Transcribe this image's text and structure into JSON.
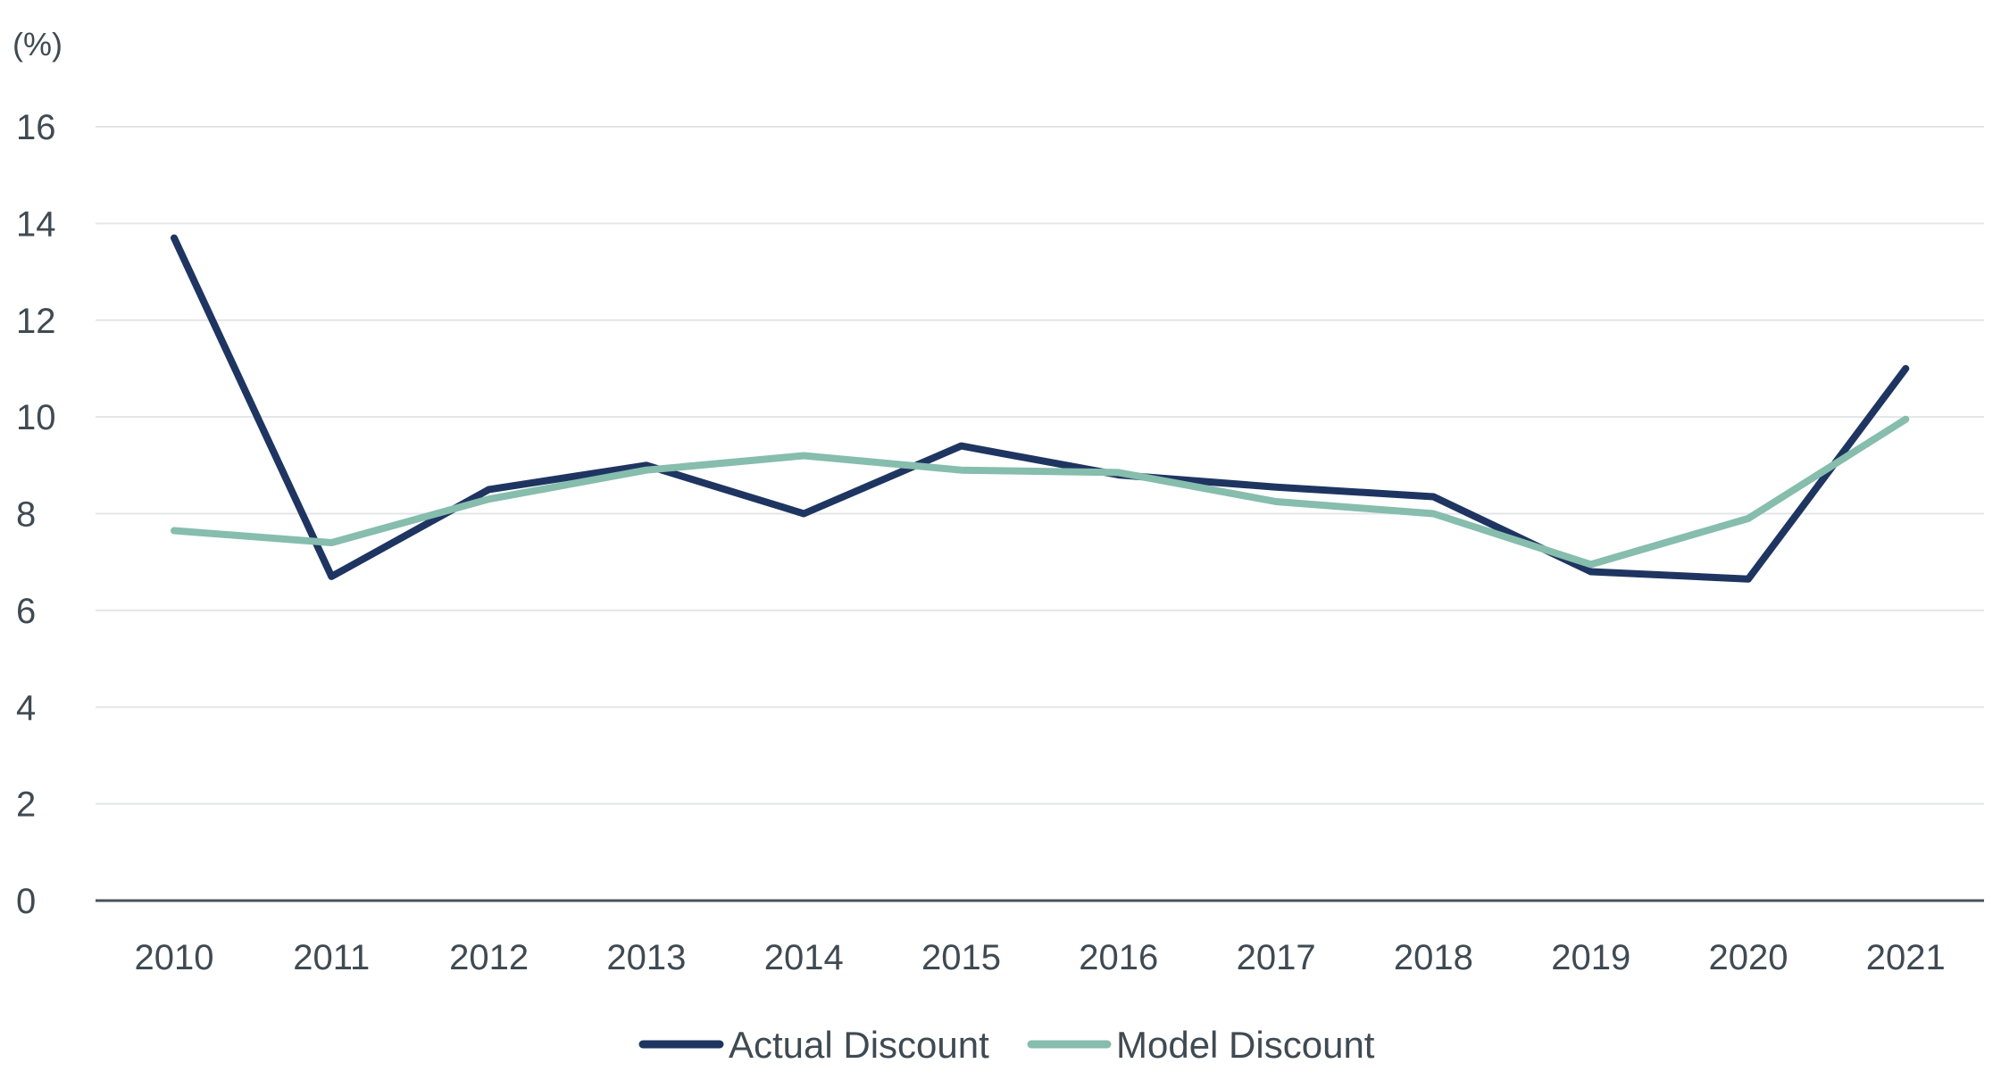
{
  "chart_data": {
    "type": "line",
    "title": "",
    "ylabel": "(%)",
    "xlabel": "",
    "x": [
      "2010",
      "2011",
      "2012",
      "2013",
      "2014",
      "2015",
      "2016",
      "2017",
      "2018",
      "2019",
      "2020",
      "2021"
    ],
    "yticks": [
      "0",
      "2",
      "4",
      "6",
      "8",
      "10",
      "12",
      "14",
      "16"
    ],
    "ylim": [
      0,
      16
    ],
    "grid": true,
    "legend_position": "bottom-center",
    "series": [
      {
        "name": "Actual Discount",
        "color": "#1f3561",
        "values": [
          13.7,
          6.7,
          8.5,
          9.0,
          8.0,
          9.4,
          8.8,
          8.55,
          8.35,
          6.8,
          6.65,
          11.0
        ]
      },
      {
        "name": "Model Discount",
        "color": "#86bdad",
        "values": [
          7.65,
          7.4,
          8.3,
          8.9,
          9.2,
          8.9,
          8.85,
          8.25,
          8.0,
          6.95,
          7.9,
          9.95
        ]
      }
    ]
  }
}
